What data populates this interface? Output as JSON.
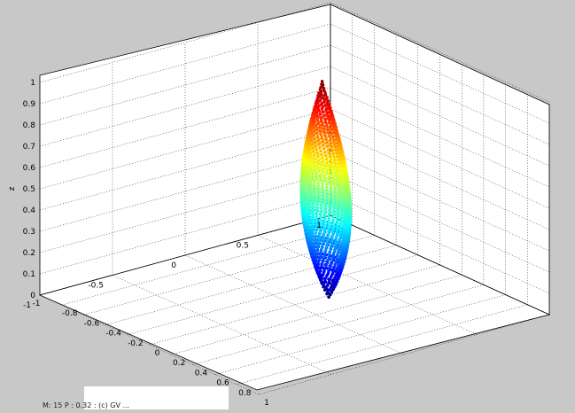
{
  "chart_data": {
    "type": "scatter",
    "subtype": "3d-surface-points",
    "shape": "elongated ellipsoid (leaf-like) colored by z with jet colormap",
    "zlabel": "z",
    "xlabel": "",
    "ylabel": "",
    "x_ticks": [
      "-0.8",
      "-0.6",
      "-0.4",
      "-0.2",
      "0",
      "0.2",
      "0.4",
      "0.6",
      "0.8",
      "1"
    ],
    "y_ticks": [
      "1",
      "0.5",
      "0",
      "-0.5",
      "-1"
    ],
    "z_ticks": [
      "0",
      "0.1",
      "0.2",
      "0.3",
      "0.4",
      "0.5",
      "0.6",
      "0.7",
      "0.8",
      "0.9",
      "1"
    ],
    "x_left_end_tick": "-1",
    "xlim": [
      -1,
      1
    ],
    "ylim": [
      -1,
      1
    ],
    "zlim": [
      0,
      1
    ],
    "grid": true,
    "colormap": "jet",
    "surface_z_range": [
      0,
      1
    ],
    "caption": "M: 15 P : 0.32 : (c) GV ..."
  },
  "colors": {
    "background": "#c8c8c8",
    "axes_face": "#ffffff",
    "grid": "#000000"
  }
}
